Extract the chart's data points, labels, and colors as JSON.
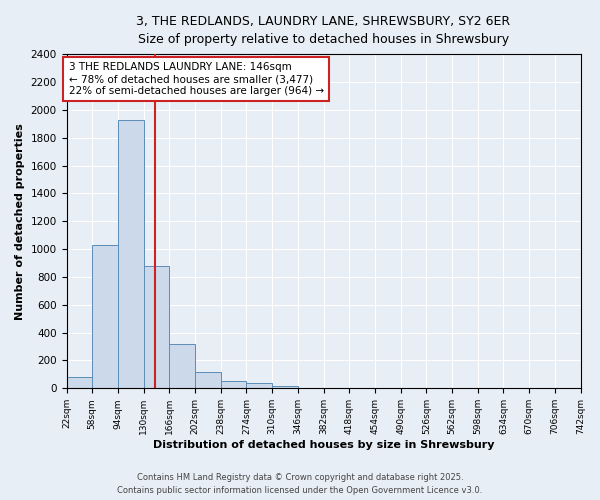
{
  "title_line1": "3, THE REDLANDS, LAUNDRY LANE, SHREWSBURY, SY2 6ER",
  "title_line2": "Size of property relative to detached houses in Shrewsbury",
  "xlabel": "Distribution of detached houses by size in Shrewsbury",
  "ylabel": "Number of detached properties",
  "bin_edges": [
    22,
    58,
    94,
    130,
    166,
    202,
    238,
    274,
    310,
    346,
    382,
    418,
    454,
    490,
    526,
    562,
    598,
    634,
    670,
    706,
    742
  ],
  "bar_heights": [
    80,
    1030,
    1930,
    880,
    320,
    115,
    55,
    35,
    20,
    5,
    2,
    0,
    0,
    0,
    0,
    0,
    0,
    0,
    0,
    0
  ],
  "bar_color": "#ccd9ea",
  "bar_edge_color": "#5b8db8",
  "property_size": 146,
  "vline_color": "#cc2222",
  "annotation_text": "3 THE REDLANDS LAUNDRY LANE: 146sqm\n← 78% of detached houses are smaller (3,477)\n22% of semi-detached houses are larger (964) →",
  "annotation_box_facecolor": "#ffffff",
  "annotation_box_edgecolor": "#cc2222",
  "ylim": [
    0,
    2400
  ],
  "yticks": [
    0,
    200,
    400,
    600,
    800,
    1000,
    1200,
    1400,
    1600,
    1800,
    2000,
    2200,
    2400
  ],
  "bg_color": "#e8eef5",
  "grid_color": "#ffffff",
  "footer1": "Contains HM Land Registry data © Crown copyright and database right 2025.",
  "footer2": "Contains public sector information licensed under the Open Government Licence v3.0."
}
